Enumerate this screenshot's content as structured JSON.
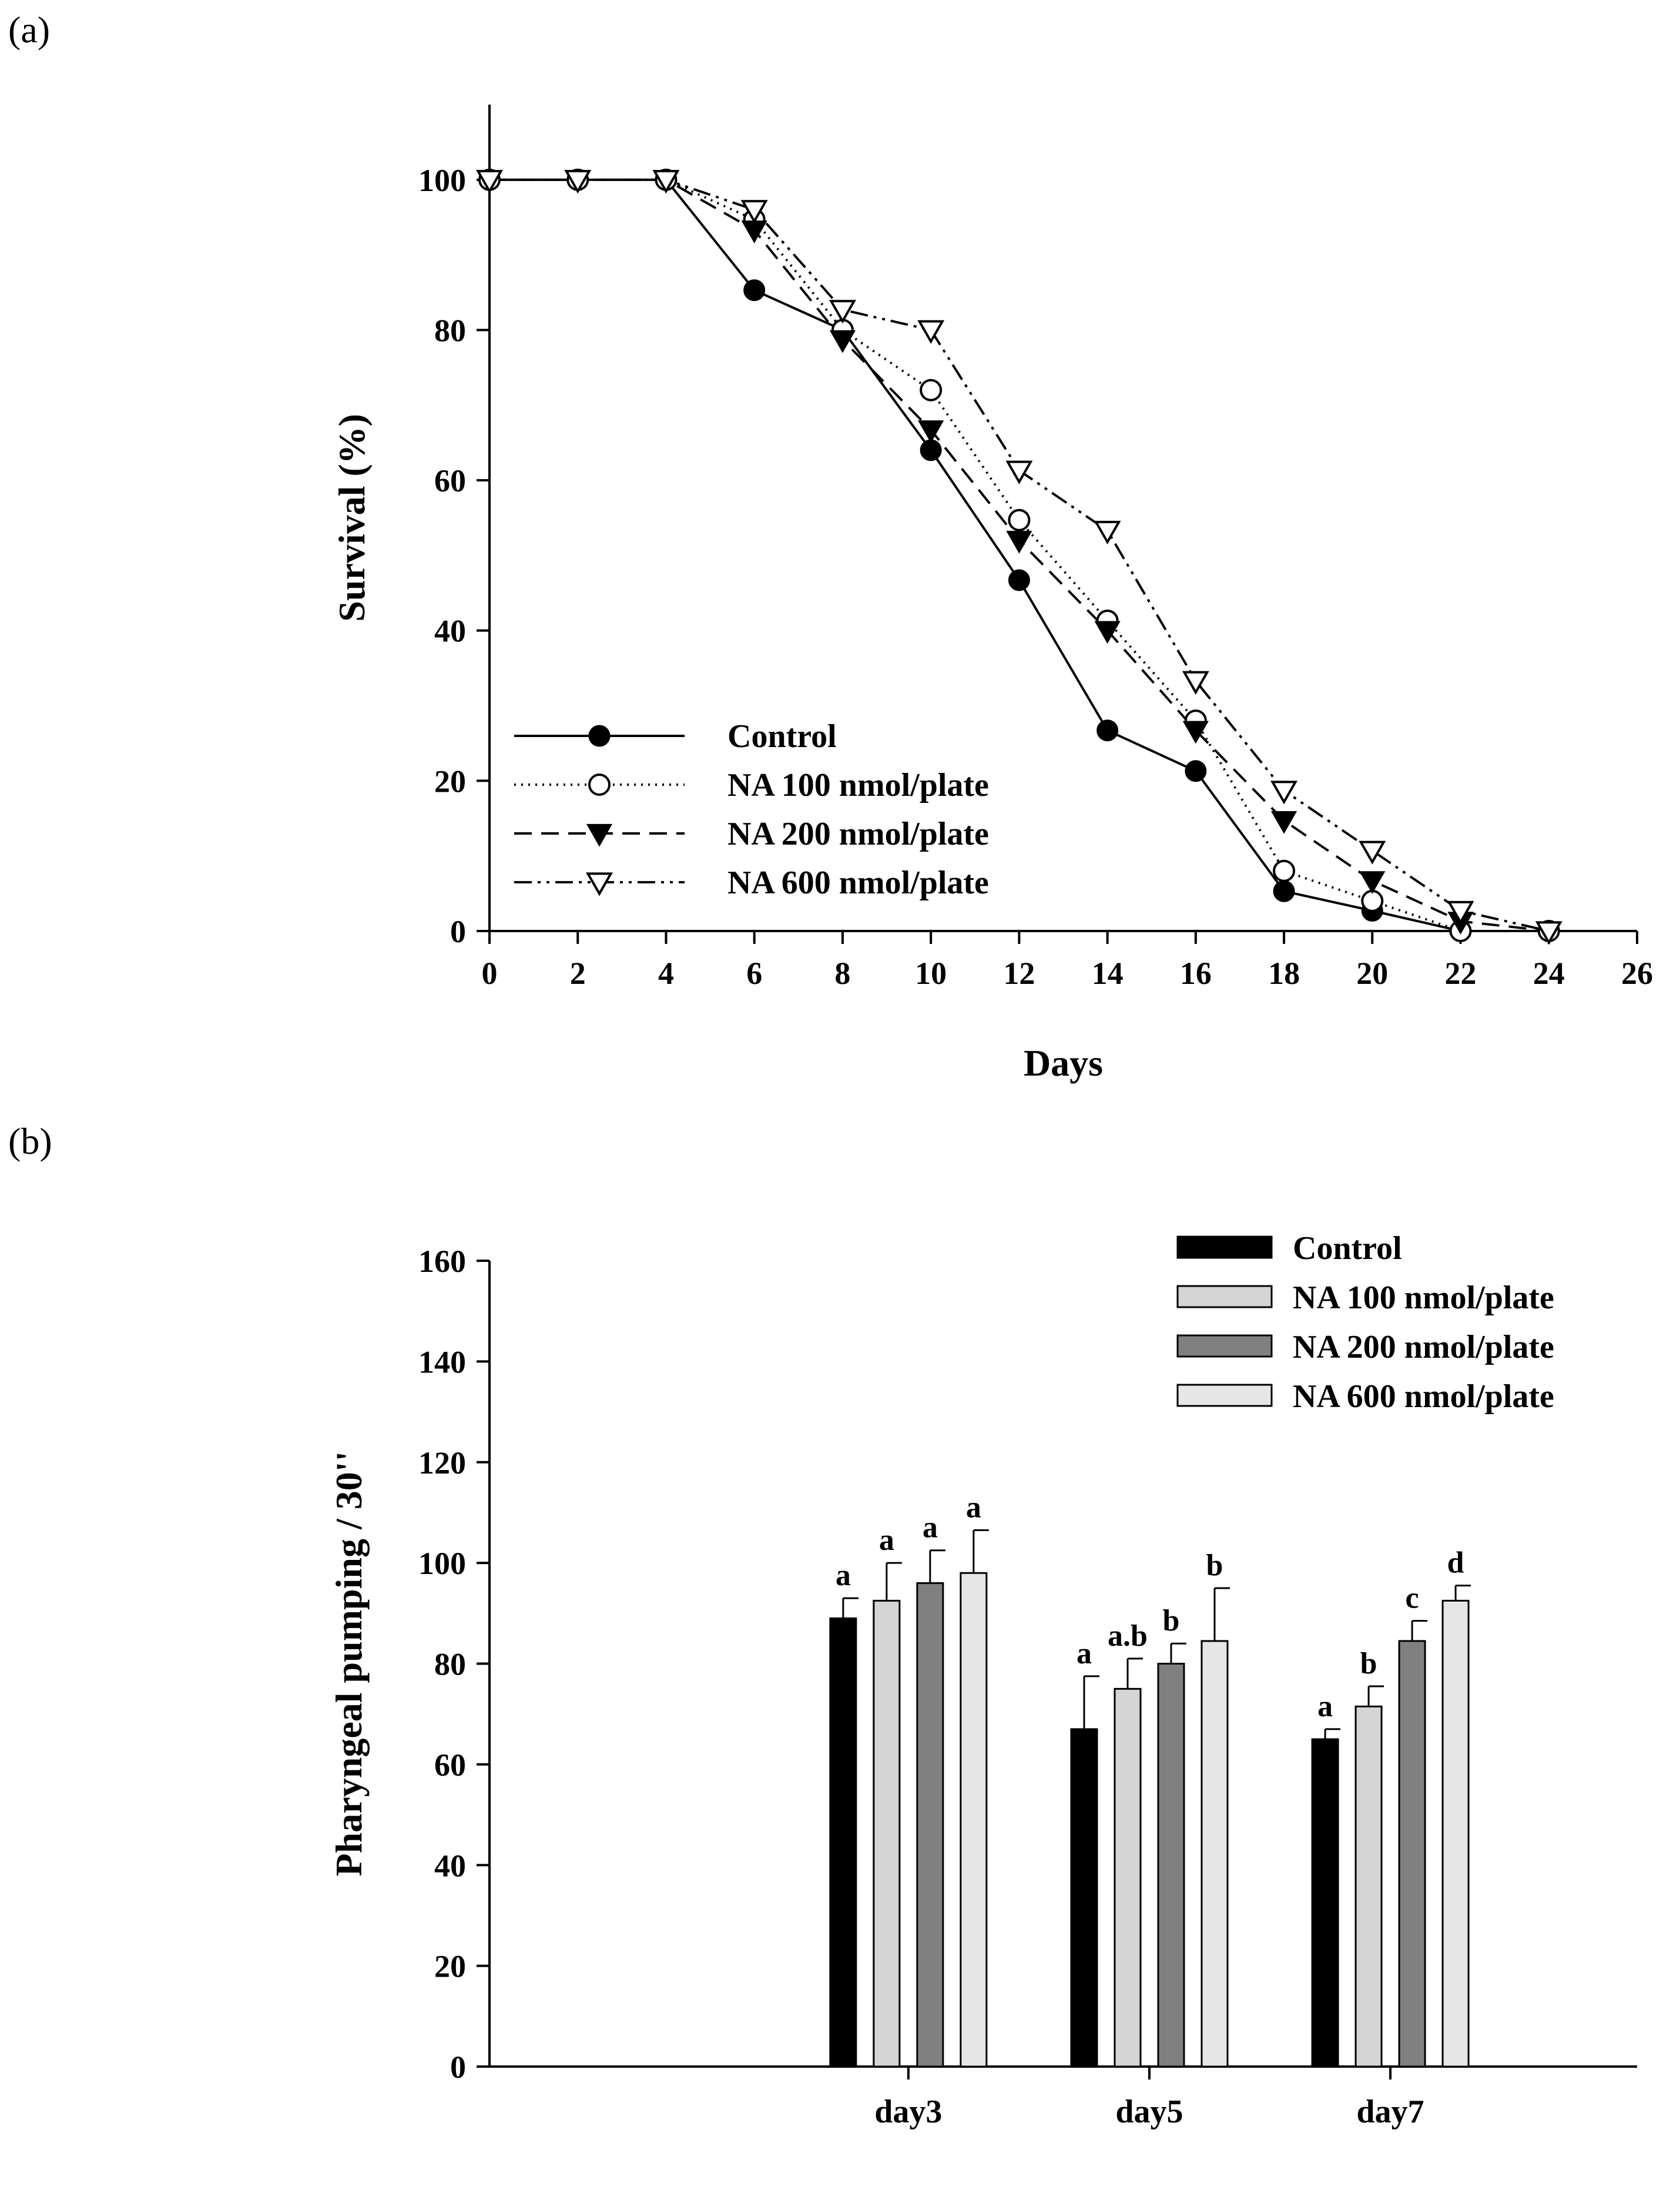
{
  "panels": {
    "a_label": "(a)",
    "b_label": "(b)"
  },
  "chart_data": [
    {
      "type": "line",
      "panel": "(a)",
      "title": "",
      "xlabel": "Days",
      "ylabel": "Survival (%)",
      "xlim": [
        0,
        26
      ],
      "ylim": [
        0,
        110
      ],
      "xticks": [
        0,
        2,
        4,
        6,
        8,
        10,
        12,
        14,
        16,
        18,
        20,
        22,
        24,
        26
      ],
      "yticks": [
        0,
        20,
        40,
        60,
        80,
        100
      ],
      "legend_position": "bottom-left",
      "series": [
        {
          "name": "Control",
          "marker": "filled-circle",
          "dash": "solid",
          "x": [
            0,
            2,
            4,
            6,
            8,
            10,
            12,
            14,
            16,
            18,
            20,
            22,
            24
          ],
          "values": [
            100,
            100,
            100,
            85.3,
            80,
            64,
            46.7,
            26.7,
            21.3,
            5.3,
            2.7,
            0,
            0
          ]
        },
        {
          "name": "NA 100 nmol/plate",
          "marker": "open-circle",
          "dash": "dotted",
          "x": [
            0,
            2,
            4,
            6,
            8,
            10,
            12,
            14,
            16,
            18,
            20,
            22,
            24
          ],
          "values": [
            100,
            100,
            100,
            94.7,
            80,
            72,
            54.7,
            41.3,
            28,
            8,
            4,
            0,
            0
          ]
        },
        {
          "name": "NA 200 nmol/plate",
          "marker": "filled-triangle-down",
          "dash": "dashed",
          "x": [
            0,
            2,
            4,
            6,
            8,
            10,
            12,
            14,
            16,
            18,
            20,
            22,
            24
          ],
          "values": [
            100,
            100,
            100,
            93.3,
            78.7,
            66.7,
            52,
            40,
            26.7,
            14.7,
            6.7,
            1.3,
            0
          ]
        },
        {
          "name": "NA 600 nmol/plate",
          "marker": "open-triangle-down",
          "dash": "dash-dot-dot",
          "x": [
            0,
            2,
            4,
            6,
            8,
            10,
            12,
            14,
            16,
            18,
            20,
            22,
            24
          ],
          "values": [
            100,
            100,
            100,
            96,
            82.7,
            80,
            61.3,
            53.3,
            33.3,
            18.7,
            10.7,
            2.7,
            0
          ]
        }
      ]
    },
    {
      "type": "bar",
      "panel": "(b)",
      "title": "",
      "xlabel": "",
      "ylabel": "Pharyngeal pumping / 30''",
      "ylim": [
        0,
        160
      ],
      "yticks": [
        0,
        20,
        40,
        60,
        80,
        100,
        120,
        140,
        160
      ],
      "categories": [
        "day3",
        "day5",
        "day7"
      ],
      "legend_position": "top-right",
      "series": [
        {
          "name": "Control",
          "color": "#000000",
          "values": [
            89,
            67,
            65
          ],
          "errors": [
            4,
            10.5,
            2
          ],
          "letters": [
            "a",
            "a",
            "a"
          ]
        },
        {
          "name": "NA 100 nmol/plate",
          "color": "#d4d4d4",
          "values": [
            92.5,
            75,
            71.5
          ],
          "errors": [
            7.5,
            6,
            4
          ],
          "letters": [
            "a",
            "a.b",
            "b"
          ]
        },
        {
          "name": "NA 200 nmol/plate",
          "color": "#808080",
          "values": [
            96,
            80,
            84.5
          ],
          "errors": [
            6.5,
            4,
            4
          ],
          "letters": [
            "a",
            "b",
            "c"
          ]
        },
        {
          "name": "NA 600 nmol/plate",
          "color": "#e6e6e6",
          "values": [
            98,
            84.5,
            92.5
          ],
          "errors": [
            8.5,
            10.5,
            3
          ],
          "letters": [
            "a",
            "b",
            "d"
          ]
        }
      ]
    }
  ]
}
